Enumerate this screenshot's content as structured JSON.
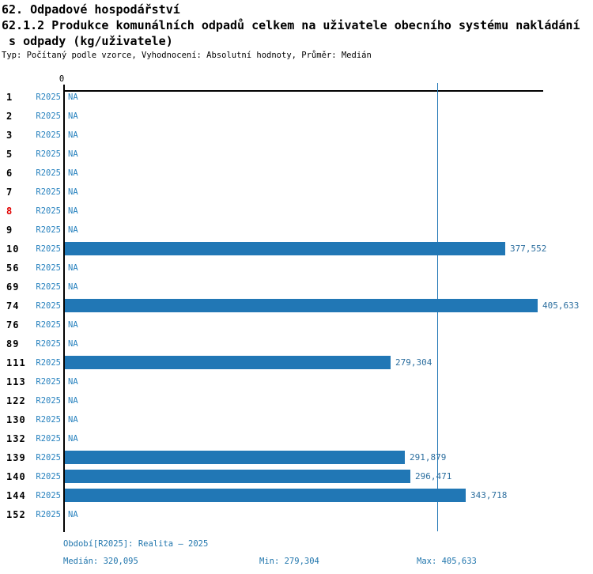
{
  "header": {
    "line1": "62. Odpadové hospodářství",
    "line2": "62.1.2 Produkce komunálních odpadů celkem na uživatele obecního systému nakládání",
    "line3": " s odpady (kg/uživatele)",
    "meta": "Typ: Počítaný podle vzorce, Vyhodnocení: Absolutní hodnoty, Průměr: Medián"
  },
  "colors": {
    "bar_blue": "#2177b5",
    "label_blue": "#2681be",
    "value_blue": "#2d6f9f",
    "highlight_red": "#e10000",
    "axis_black": "#000000"
  },
  "chart_data": {
    "type": "bar",
    "orientation": "horizontal",
    "title": "62.1.2 Produkce komunálních odpadů celkem na uživatele obecního systému nakládání s odpady (kg/uživatele)",
    "xlabel": "kg/uživatele",
    "axis_zero_label": "0",
    "xlim": [
      0,
      410
    ],
    "grid": false,
    "period_label": "R2025",
    "na_label": "NA",
    "categories": [
      "1",
      "2",
      "3",
      "5",
      "6",
      "7",
      "8",
      "9",
      "10",
      "56",
      "69",
      "74",
      "76",
      "89",
      "111",
      "113",
      "122",
      "130",
      "132",
      "139",
      "140",
      "144",
      "152"
    ],
    "rows": [
      {
        "id": "1",
        "period": "R2025",
        "value": null,
        "value_label": "NA",
        "highlight": false
      },
      {
        "id": "2",
        "period": "R2025",
        "value": null,
        "value_label": "NA",
        "highlight": false
      },
      {
        "id": "3",
        "period": "R2025",
        "value": null,
        "value_label": "NA",
        "highlight": false
      },
      {
        "id": "5",
        "period": "R2025",
        "value": null,
        "value_label": "NA",
        "highlight": false
      },
      {
        "id": "6",
        "period": "R2025",
        "value": null,
        "value_label": "NA",
        "highlight": false
      },
      {
        "id": "7",
        "period": "R2025",
        "value": null,
        "value_label": "NA",
        "highlight": false
      },
      {
        "id": "8",
        "period": "R2025",
        "value": null,
        "value_label": "NA",
        "highlight": true
      },
      {
        "id": "9",
        "period": "R2025",
        "value": null,
        "value_label": "NA",
        "highlight": false
      },
      {
        "id": "10",
        "period": "R2025",
        "value": 377.552,
        "value_label": "377,552",
        "highlight": false
      },
      {
        "id": "56",
        "period": "R2025",
        "value": null,
        "value_label": "NA",
        "highlight": false
      },
      {
        "id": "69",
        "period": "R2025",
        "value": null,
        "value_label": "NA",
        "highlight": false
      },
      {
        "id": "74",
        "period": "R2025",
        "value": 405.633,
        "value_label": "405,633",
        "highlight": false
      },
      {
        "id": "76",
        "period": "R2025",
        "value": null,
        "value_label": "NA",
        "highlight": false
      },
      {
        "id": "89",
        "period": "R2025",
        "value": null,
        "value_label": "NA",
        "highlight": false
      },
      {
        "id": "111",
        "period": "R2025",
        "value": 279.304,
        "value_label": "279,304",
        "highlight": false
      },
      {
        "id": "113",
        "period": "R2025",
        "value": null,
        "value_label": "NA",
        "highlight": false
      },
      {
        "id": "122",
        "period": "R2025",
        "value": null,
        "value_label": "NA",
        "highlight": false
      },
      {
        "id": "130",
        "period": "R2025",
        "value": null,
        "value_label": "NA",
        "highlight": false
      },
      {
        "id": "132",
        "period": "R2025",
        "value": null,
        "value_label": "NA",
        "highlight": false
      },
      {
        "id": "139",
        "period": "R2025",
        "value": 291.879,
        "value_label": "291,879",
        "highlight": false
      },
      {
        "id": "140",
        "period": "R2025",
        "value": 296.471,
        "value_label": "296,471",
        "highlight": false
      },
      {
        "id": "144",
        "period": "R2025",
        "value": 343.718,
        "value_label": "343,718",
        "highlight": false
      },
      {
        "id": "152",
        "period": "R2025",
        "value": null,
        "value_label": "NA",
        "highlight": false
      }
    ],
    "median_value": 320.095,
    "min_value": 279.304,
    "max_value": 405.633
  },
  "footer": {
    "period_line": "Období[R2025]: Realita – 2025",
    "median": "Medián: 320,095",
    "min": "Min: 279,304",
    "max": "Max: 405,633"
  }
}
